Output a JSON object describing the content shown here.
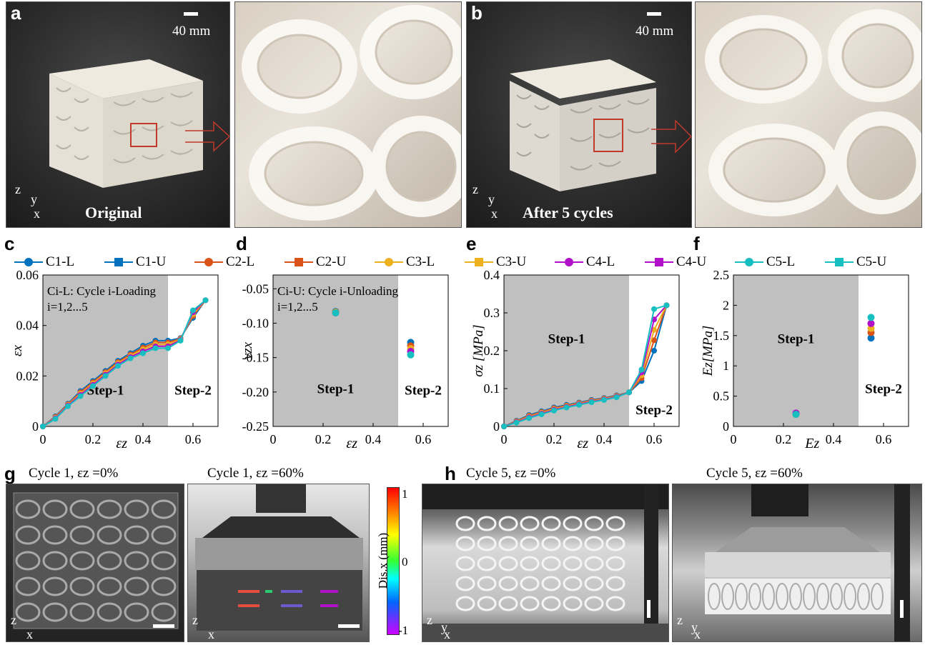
{
  "panels": {
    "a": {
      "letter": "a",
      "scale": "40 mm",
      "label": "Original",
      "axes": {
        "z": "z",
        "y": "y",
        "x": "x"
      }
    },
    "b": {
      "letter": "b",
      "scale": "40 mm",
      "label": "After 5 cycles",
      "axes": {
        "z": "z",
        "y": "y",
        "x": "x"
      }
    },
    "c": {
      "letter": "c"
    },
    "d": {
      "letter": "d"
    },
    "e": {
      "letter": "e"
    },
    "f": {
      "letter": "f"
    },
    "g": {
      "letter": "g",
      "caption_left": "Cycle 1,  εz =0%",
      "caption_right": "Cycle 1,  εz =60%",
      "colorbar_label": "Dis.x (mm)",
      "colorbar_ticks": [
        "1",
        "0",
        "-1"
      ],
      "axes": {
        "z": "z",
        "x": "x"
      }
    },
    "h": {
      "letter": "h",
      "caption_left": "Cycle  5,  εz =0%",
      "caption_right": "Cycle  5,  εz =60%",
      "axes": {
        "z": "z",
        "y": "y",
        "x": "x"
      }
    }
  },
  "legend": [
    {
      "name": "C1-L",
      "color": "#0072BD",
      "marker": "circle"
    },
    {
      "name": "C1-U",
      "color": "#0072BD",
      "marker": "square"
    },
    {
      "name": "C2-L",
      "color": "#D95319",
      "marker": "circle"
    },
    {
      "name": "C2-U",
      "color": "#D95319",
      "marker": "square"
    },
    {
      "name": "C3-L",
      "color": "#EDB120",
      "marker": "circle"
    },
    {
      "name": "C3-U",
      "color": "#EDB120",
      "marker": "square"
    },
    {
      "name": "C4-L",
      "color": "#B010C8",
      "marker": "circle"
    },
    {
      "name": "C4-U",
      "color": "#B010C8",
      "marker": "square"
    },
    {
      "name": "C5-L",
      "color": "#17BFC0",
      "marker": "circle"
    },
    {
      "name": "C5-U",
      "color": "#17BFC0",
      "marker": "square"
    }
  ],
  "chart_data": [
    {
      "id": "c",
      "type": "line",
      "xlabel": "εz",
      "ylabel": "εx",
      "xlim": [
        0,
        0.7
      ],
      "ylim": [
        0,
        0.06
      ],
      "xticks": [
        "0",
        "0.2",
        "0.4",
        "0.6"
      ],
      "yticks": [
        "0",
        "0.02",
        "0.04",
        "0.06"
      ],
      "step_boundary": 0.5,
      "annotations": [
        "Ci-L: Cycle i-Loading",
        "i=1,2...5"
      ],
      "step_labels": [
        "Step-1",
        "Step-2"
      ],
      "x": [
        0,
        0.05,
        0.1,
        0.15,
        0.2,
        0.25,
        0.3,
        0.35,
        0.4,
        0.45,
        0.5,
        0.55,
        0.6,
        0.65
      ],
      "series": [
        {
          "name": "C1-L",
          "values": [
            0,
            0.004,
            0.009,
            0.014,
            0.018,
            0.022,
            0.026,
            0.029,
            0.032,
            0.034,
            0.034,
            0.035,
            0.043,
            0.05
          ]
        },
        {
          "name": "C5-L",
          "values": [
            0,
            0.003,
            0.008,
            0.012,
            0.016,
            0.02,
            0.024,
            0.027,
            0.029,
            0.031,
            0.031,
            0.034,
            0.046,
            null
          ]
        }
      ]
    },
    {
      "id": "d",
      "type": "scatter",
      "xlabel": "εz",
      "ylabel": "νzx",
      "xlim": [
        0,
        0.7
      ],
      "ylim": [
        -0.25,
        -0.03
      ],
      "xticks": [
        "0",
        "0.2",
        "0.4",
        "0.6"
      ],
      "yticks": [
        "-0.05",
        "-0.10",
        "-0.15",
        "-0.20",
        "-0.25"
      ],
      "step_boundary": 0.5,
      "annotations": [
        "Ci-U: Cycle i-Unloading",
        "i=1,2...5"
      ],
      "step_labels": [
        "Step-1",
        "Step-2"
      ],
      "x": [
        0.25,
        0.55
      ],
      "series": [
        {
          "name": "C1",
          "values": [
            -0.083,
            -0.128
          ]
        },
        {
          "name": "C2",
          "values": [
            -0.084,
            -0.133
          ]
        },
        {
          "name": "C3",
          "values": [
            -0.084,
            -0.137
          ]
        },
        {
          "name": "C4",
          "values": [
            -0.085,
            -0.141
          ]
        },
        {
          "name": "C5",
          "values": [
            -0.085,
            -0.146
          ]
        }
      ]
    },
    {
      "id": "e",
      "type": "line",
      "xlabel": "εz",
      "ylabel": "σz [MPa]",
      "xlim": [
        0,
        0.7
      ],
      "ylim": [
        0,
        0.4
      ],
      "xticks": [
        "0",
        "0.2",
        "0.4",
        "0.6"
      ],
      "yticks": [
        "0",
        "0.1",
        "0.2",
        "0.3",
        "0.4"
      ],
      "step_boundary": 0.5,
      "step_labels": [
        "Step-1",
        "Step-2"
      ],
      "x": [
        0,
        0.05,
        0.1,
        0.15,
        0.2,
        0.25,
        0.3,
        0.35,
        0.4,
        0.45,
        0.5,
        0.55,
        0.6,
        0.65
      ],
      "series": [
        {
          "name": "C1-L",
          "values": [
            0,
            0.015,
            0.03,
            0.04,
            0.05,
            0.057,
            0.063,
            0.07,
            0.075,
            0.082,
            0.09,
            0.12,
            0.2,
            0.32
          ]
        },
        {
          "name": "C5-L",
          "values": [
            0,
            0.01,
            0.022,
            0.032,
            0.042,
            0.05,
            0.057,
            0.064,
            0.07,
            0.077,
            0.09,
            0.15,
            0.31,
            null
          ]
        }
      ]
    },
    {
      "id": "f",
      "type": "scatter",
      "xlabel": "Ez",
      "ylabel": "Ez[MPa]",
      "xlim": [
        0,
        0.7
      ],
      "ylim": [
        0,
        2.5
      ],
      "xticks": [
        "0",
        "0.2",
        "0.4",
        "0.6"
      ],
      "yticks": [
        "0",
        "0.5",
        "1",
        "1.5",
        "2",
        "2.5"
      ],
      "step_boundary": 0.5,
      "step_labels": [
        "Step-1",
        "Step-2"
      ],
      "x": [
        0.25,
        0.55
      ],
      "series": [
        {
          "name": "C1",
          "values": [
            0.2,
            1.46
          ]
        },
        {
          "name": "C2",
          "values": [
            0.21,
            1.55
          ]
        },
        {
          "name": "C3",
          "values": [
            0.2,
            1.62
          ]
        },
        {
          "name": "C4",
          "values": [
            0.22,
            1.7
          ]
        },
        {
          "name": "C5",
          "values": [
            0.2,
            1.8
          ]
        }
      ]
    }
  ]
}
